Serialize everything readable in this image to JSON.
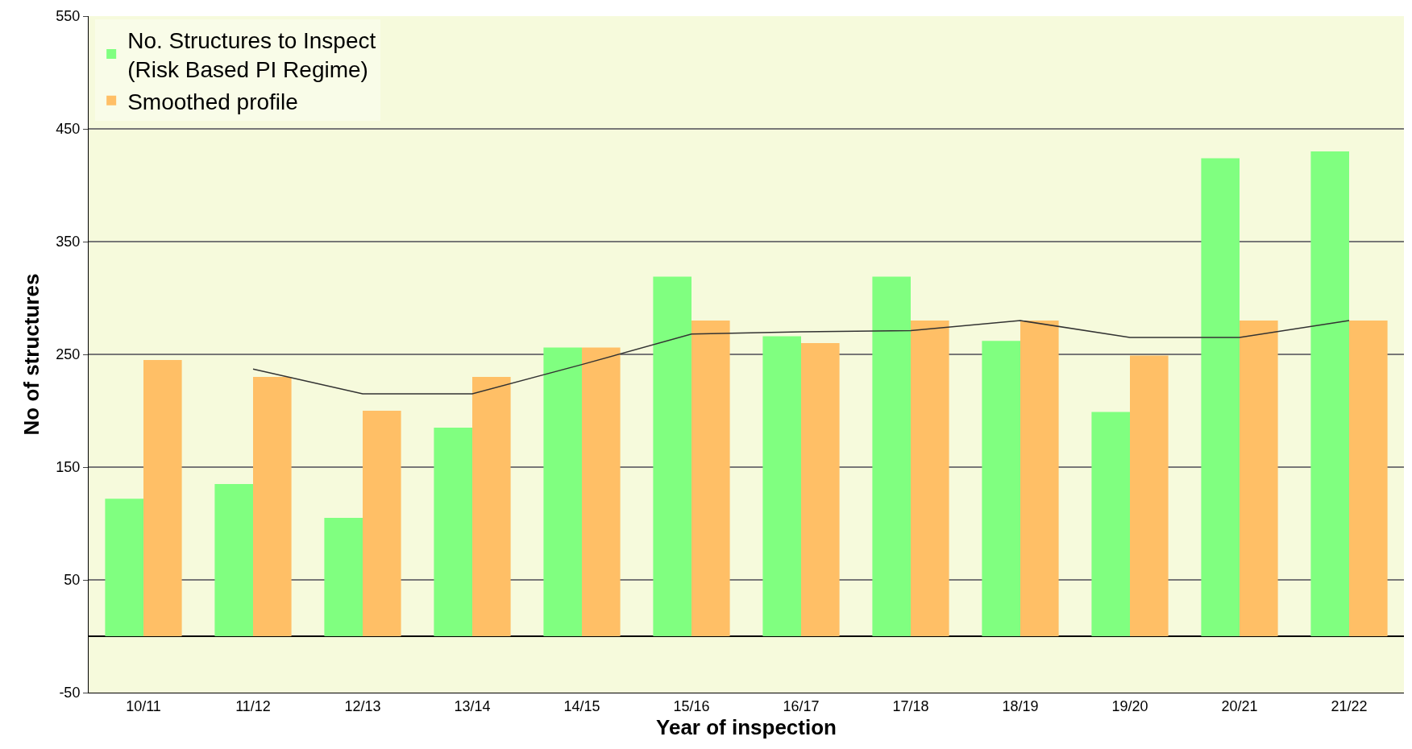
{
  "chart_data": {
    "type": "bar",
    "xlabel": "Year of inspection",
    "ylabel": "No of structures",
    "categories": [
      "10/11",
      "11/12",
      "12/13",
      "13/14",
      "14/15",
      "15/16",
      "16/17",
      "17/18",
      "18/19",
      "19/20",
      "20/21",
      "21/22"
    ],
    "series": [
      {
        "name": "No. Structures to Inspect (Risk Based PI Regime)",
        "color": "#80ff80",
        "values": [
          122,
          135,
          105,
          185,
          256,
          319,
          266,
          319,
          262,
          199,
          424,
          430
        ]
      },
      {
        "name": "Smoothed profile",
        "color": "#ffbf66",
        "values": [
          245,
          230,
          200,
          230,
          256,
          280,
          260,
          280,
          280,
          249,
          280,
          280
        ]
      },
      {
        "type": "line",
        "color": "#333333",
        "values": [
          null,
          237,
          215,
          215,
          241,
          268,
          270,
          271,
          280,
          265,
          265,
          280
        ]
      }
    ],
    "ylim": [
      -50,
      550
    ],
    "yticks": [
      -50,
      50,
      150,
      250,
      350,
      450,
      550
    ],
    "grid": "y",
    "legend": "top left",
    "marker": "none",
    "line_style": "solid"
  }
}
